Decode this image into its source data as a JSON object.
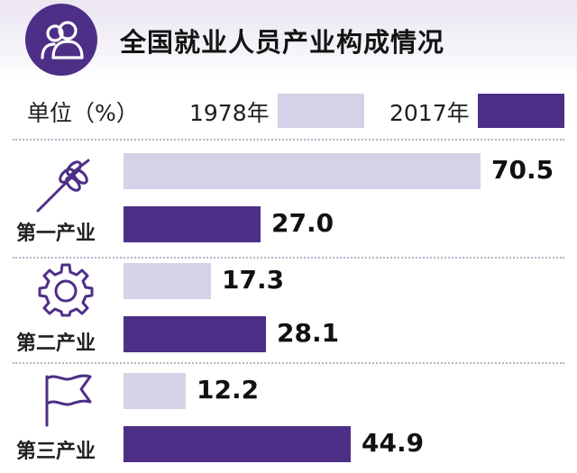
{
  "title": "全国就业人员产业构成情况",
  "legend": {
    "unit": "单位（%）",
    "series": [
      {
        "name": "1978年",
        "color": "#d6d1e6"
      },
      {
        "name": "2017年",
        "color": "#4d2f87"
      }
    ]
  },
  "icons": {
    "header": "people-icon",
    "sectors": [
      "wheat-icon",
      "gear-icon",
      "flag-icon"
    ]
  },
  "chart_data": {
    "type": "bar",
    "orientation": "horizontal",
    "title": "全国就业人员产业构成情况",
    "unit": "单位（%）",
    "categories": [
      "第一产业",
      "第二产业",
      "第三产业"
    ],
    "series": [
      {
        "name": "1978年",
        "values": [
          70.5,
          17.3,
          12.2
        ],
        "labels": [
          "70.5",
          "17.3",
          "12.2"
        ]
      },
      {
        "name": "2017年",
        "values": [
          27.0,
          28.1,
          44.9
        ],
        "labels": [
          "27.0",
          "28.1",
          "44.9"
        ]
      }
    ],
    "xlim": [
      0,
      72
    ]
  }
}
